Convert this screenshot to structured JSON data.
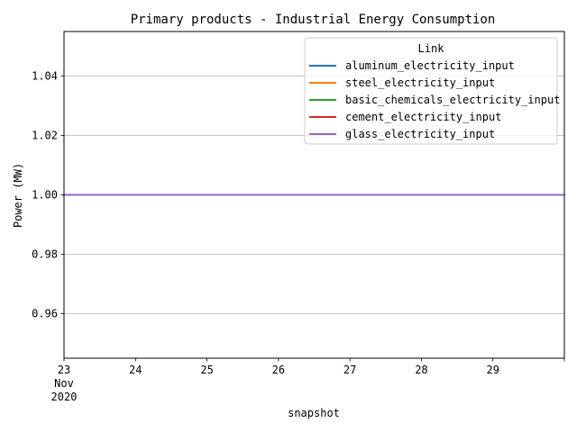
{
  "chart_data": {
    "type": "line",
    "title": "Primary products - Industrial Energy Consumption",
    "xlabel": "snapshot",
    "ylabel": "Power (MW)",
    "x_tick_labels": [
      "23",
      "24",
      "25",
      "26",
      "27",
      "28",
      "29"
    ],
    "x_tick_sublabels": [
      "Nov",
      "2020"
    ],
    "x_start": "2020-11-23",
    "x_end": "2020-11-30",
    "xlim": [
      "2020-11-23",
      "2020-11-30"
    ],
    "ylim": [
      0.945,
      1.055
    ],
    "y_ticks": [
      0.96,
      0.98,
      1.0,
      1.02,
      1.04
    ],
    "y_tick_labels": [
      "0.96",
      "0.98",
      "1.00",
      "1.02",
      "1.04"
    ],
    "grid": "y-major",
    "legend": {
      "title": "Link",
      "placement": "top-right"
    },
    "series": [
      {
        "name": "aluminum_electricity_input",
        "color": "#1f77b4",
        "x": [
          "2020-11-23",
          "2020-11-30"
        ],
        "values": [
          1.0,
          1.0
        ]
      },
      {
        "name": "steel_electricity_input",
        "color": "#ff7f0e",
        "x": [
          "2020-11-23",
          "2020-11-30"
        ],
        "values": [
          1.0,
          1.0
        ]
      },
      {
        "name": "basic_chemicals_electricity_input",
        "color": "#2ca02c",
        "x": [
          "2020-11-23",
          "2020-11-30"
        ],
        "values": [
          1.0,
          1.0
        ]
      },
      {
        "name": "cement_electricity_input",
        "color": "#d62728",
        "x": [
          "2020-11-23",
          "2020-11-30"
        ],
        "values": [
          1.0,
          1.0
        ]
      },
      {
        "name": "glass_electricity_input",
        "color": "#9467bd",
        "x": [
          "2020-11-23",
          "2020-11-30"
        ],
        "values": [
          1.0,
          1.0
        ]
      }
    ]
  }
}
